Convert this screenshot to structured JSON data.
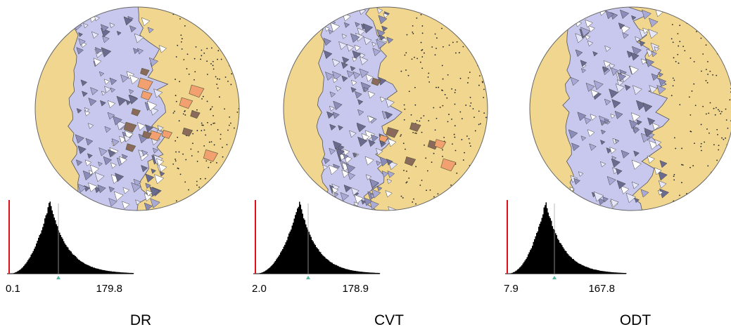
{
  "panels": [
    {
      "label": "DR",
      "min": "0.1",
      "max": "179.8"
    },
    {
      "label": "CVT",
      "min": "2.0",
      "max": "178.9"
    },
    {
      "label": "ODT",
      "min": "7.9",
      "max": "167.8"
    }
  ]
}
